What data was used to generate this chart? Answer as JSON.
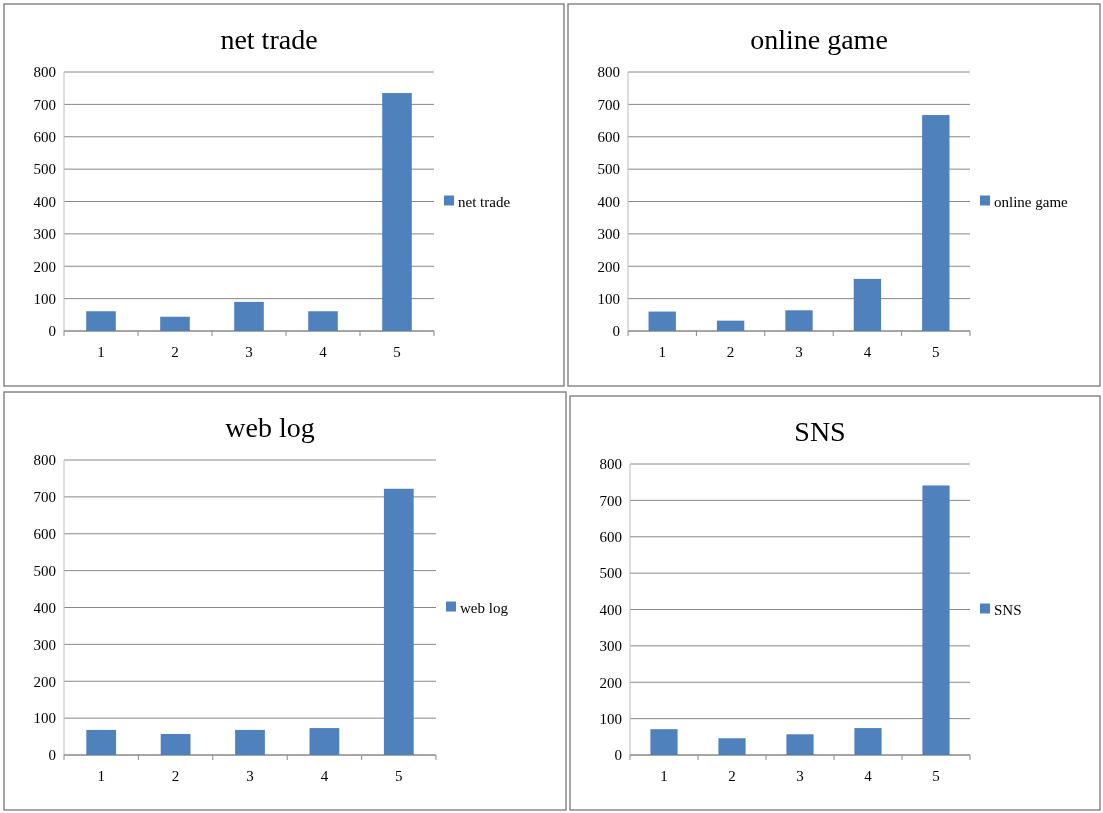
{
  "chart_data": [
    {
      "type": "bar",
      "title": "net trade",
      "categories": [
        "1",
        "2",
        "3",
        "4",
        "5"
      ],
      "series": [
        {
          "name": "net trade",
          "color": "#4f81bd",
          "values": [
            61,
            44,
            90,
            61,
            735
          ]
        }
      ],
      "ylim": [
        0,
        800
      ],
      "yticks": [
        0,
        100,
        200,
        300,
        400,
        500,
        600,
        700,
        800
      ],
      "grid": "y",
      "legend": "right"
    },
    {
      "type": "bar",
      "title": "online game",
      "categories": [
        "1",
        "2",
        "3",
        "4",
        "5"
      ],
      "series": [
        {
          "name": "online game",
          "color": "#4f81bd",
          "values": [
            60,
            32,
            64,
            161,
            667
          ]
        }
      ],
      "ylim": [
        0,
        800
      ],
      "yticks": [
        0,
        100,
        200,
        300,
        400,
        500,
        600,
        700,
        800
      ],
      "grid": "y",
      "legend": "right"
    },
    {
      "type": "bar",
      "title": "web log",
      "categories": [
        "1",
        "2",
        "3",
        "4",
        "5"
      ],
      "series": [
        {
          "name": "web log",
          "color": "#4f81bd",
          "values": [
            68,
            57,
            68,
            73,
            722
          ]
        }
      ],
      "ylim": [
        0,
        800
      ],
      "yticks": [
        0,
        100,
        200,
        300,
        400,
        500,
        600,
        700,
        800
      ],
      "grid": "y",
      "legend": "right"
    },
    {
      "type": "bar",
      "title": "SNS",
      "categories": [
        "1",
        "2",
        "3",
        "4",
        "5"
      ],
      "series": [
        {
          "name": "SNS",
          "color": "#4f81bd",
          "values": [
            71,
            46,
            57,
            74,
            741
          ]
        }
      ],
      "ylim": [
        0,
        800
      ],
      "yticks": [
        0,
        100,
        200,
        300,
        400,
        500,
        600,
        700,
        800
      ],
      "grid": "y",
      "legend": "right"
    }
  ]
}
